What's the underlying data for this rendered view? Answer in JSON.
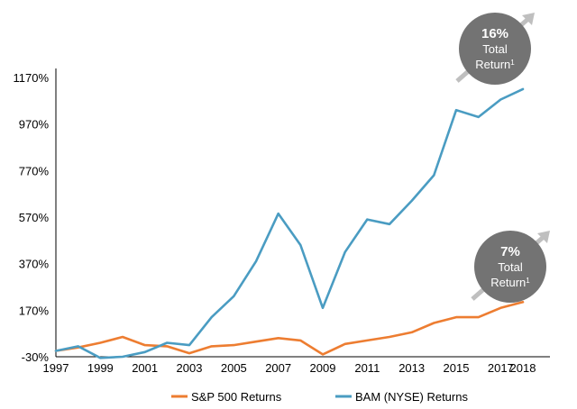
{
  "chart_data": {
    "type": "line",
    "x": [
      1997,
      1998,
      1999,
      2000,
      2001,
      2002,
      2003,
      2004,
      2005,
      2006,
      2007,
      2008,
      2009,
      2010,
      2011,
      2012,
      2013,
      2014,
      2015,
      2016,
      2017,
      2018
    ],
    "x_tick_labels": [
      "1997",
      "1999",
      "2001",
      "2003",
      "2005",
      "2007",
      "2009",
      "2011",
      "2013",
      "2015",
      "2017",
      "2018"
    ],
    "y_tick_labels": [
      "-30%",
      "170%",
      "370%",
      "570%",
      "770%",
      "970%",
      "1170%"
    ],
    "ylim": [
      -30,
      1170
    ],
    "grid": false,
    "legend_position": "bottom",
    "series": [
      {
        "name": "S&P 500 Returns",
        "color": "#ed7d31",
        "values": [
          -5,
          10,
          30,
          55,
          20,
          15,
          -15,
          15,
          20,
          35,
          50,
          40,
          -20,
          25,
          40,
          55,
          75,
          115,
          140,
          140,
          180,
          205
        ]
      },
      {
        "name": "BAM (NYSE) Returns",
        "color": "#4a9cc2",
        "values": [
          -5,
          15,
          -35,
          -30,
          -10,
          30,
          20,
          140,
          230,
          380,
          585,
          450,
          180,
          420,
          560,
          540,
          640,
          750,
          1030,
          1000,
          1075,
          1120
        ]
      }
    ],
    "annotations": [
      {
        "target": "BAM (NYSE) Returns",
        "value": "16%",
        "line1": "Total",
        "line2": "Return",
        "sup": "1"
      },
      {
        "target": "S&P 500 Returns",
        "value": "7%",
        "line1": "Total",
        "line2": "Return",
        "sup": "1"
      }
    ]
  }
}
